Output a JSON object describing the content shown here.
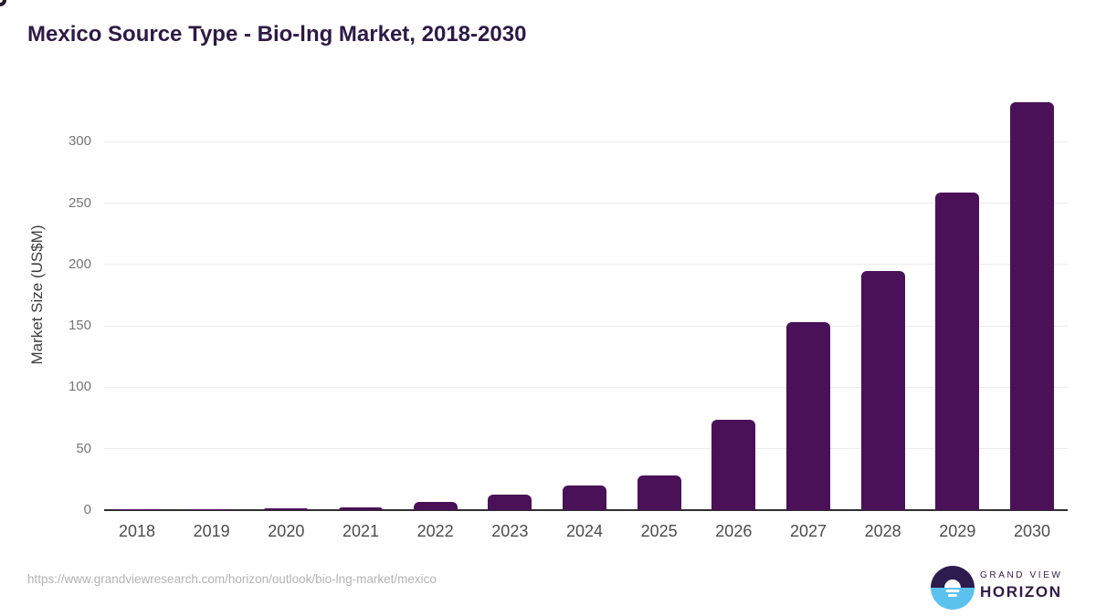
{
  "title": "Mexico Source Type - Bio-lng Market, 2018-2030",
  "chart_data": {
    "type": "bar",
    "title": "Mexico Source Type - Bio-lng Market, 2018-2030",
    "categories": [
      "2018",
      "2019",
      "2020",
      "2021",
      "2022",
      "2023",
      "2024",
      "2025",
      "2026",
      "2027",
      "2028",
      "2029",
      "2030"
    ],
    "values": [
      1,
      1.1,
      1.2,
      2,
      6.8,
      13,
      20,
      28.5,
      73.5,
      153,
      195,
      259,
      332
    ],
    "xlabel": "",
    "ylabel": "Market Size (US$M)",
    "ylim": [
      0,
      342
    ],
    "yticks": [
      0,
      50,
      100,
      150,
      200,
      250,
      300
    ],
    "grid": true,
    "legend": "none",
    "bar_color": "#4a1158"
  },
  "colors": {
    "bar": "#4a1158",
    "title_text": "#2e1a46",
    "axis_label_text": "#757575",
    "x_label_text": "#4c4c4c",
    "gridline": "#ececec",
    "axis_line": "#2f2f2f",
    "logo_purple": "#2d1b4e",
    "logo_blue": "#5bc2ee"
  },
  "footer": {
    "source_url": "https://www.grandviewresearch.com/horizon/outlook/bio-lng-market/mexico",
    "logo": {
      "line1": "GRAND VIEW",
      "line2": "HORIZON"
    }
  }
}
